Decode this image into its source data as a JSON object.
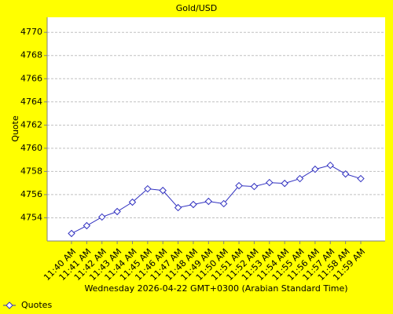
{
  "chart_data": {
    "type": "line",
    "title": "Gold/USD",
    "x_label": "Wednesday 2026-04-22 GMT+0300 (Arabian Standard Time)",
    "y_label": "Quote",
    "categories": [
      "11:40 AM",
      "11:41 AM",
      "11:42 AM",
      "11:43 AM",
      "11:44 AM",
      "11:45 AM",
      "11:46 AM",
      "11:47 AM",
      "11:48 AM",
      "11:49 AM",
      "11:50 AM",
      "11:51 AM",
      "11:52 AM",
      "11:53 AM",
      "11:54 AM",
      "11:55 AM",
      "11:56 AM",
      "11:57 AM",
      "11:58 AM",
      "11:59 AM"
    ],
    "series": [
      {
        "name": "Quotes",
        "color": "#3030c0",
        "values": [
          4752.65,
          4753.32,
          4754.07,
          4754.54,
          4755.35,
          4756.5,
          4756.36,
          4754.88,
          4755.15,
          4755.42,
          4755.22,
          4756.77,
          4756.7,
          4757.04,
          4756.97,
          4757.38,
          4758.19,
          4758.53,
          4757.78,
          4757.38
        ]
      }
    ],
    "ylim": [
      4752,
      4771.3
    ],
    "yticks": [
      4754,
      4756,
      4758,
      4760,
      4762,
      4764,
      4766,
      4768,
      4770
    ],
    "grid": true,
    "legend": "bottom-left"
  }
}
